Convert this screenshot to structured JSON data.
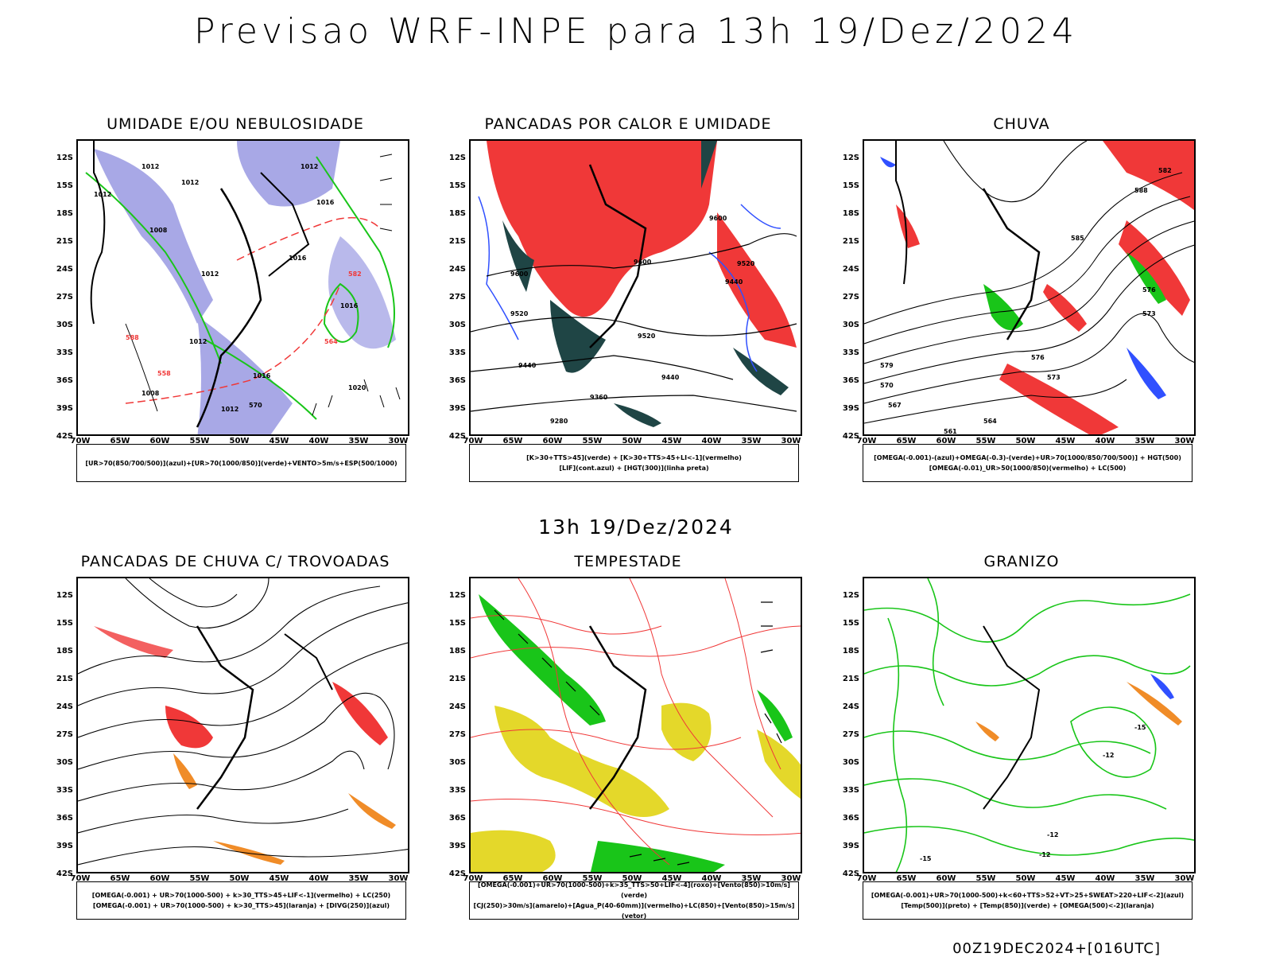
{
  "title": "Previsao WRF-INPE  para 13h 19/Dez/2024",
  "mid_title": "13h 19/Dez/2024",
  "footer": "00Z19DEC2024+[016UTC]",
  "lat_labels": [
    "12S",
    "15S",
    "18S",
    "21S",
    "24S",
    "27S",
    "30S",
    "33S",
    "36S",
    "39S",
    "42S"
  ],
  "lon_labels": [
    "70W",
    "65W",
    "60W",
    "55W",
    "50W",
    "45W",
    "40W",
    "35W",
    "30W"
  ],
  "panels": [
    {
      "title": "UMIDADE E/OU NEBULOSIDADE",
      "legend": [
        "[UR>70(850/700/500)](azul)+[UR>70(1000/850)](verde)+VENTO>5m/s+ESP(500/1000)"
      ]
    },
    {
      "title": "PANCADAS POR CALOR E UMIDADE",
      "legend": [
        "[K>30+TTS>45](verde) + [K>30+TTS>45+LI<-1](vermelho)",
        "[LIF](cont.azul) + [HGT(300)](linha preta)"
      ]
    },
    {
      "title": "CHUVA",
      "legend": [
        "[OMEGA(-0.001)-(azul)+OMEGA(-0.3)-(verde)+UR>70(1000/850/700/500)] + HGT(500)",
        "[OMEGA(-0.01)_UR>50(1000/850)(vermelho) + LC(500)"
      ]
    },
    {
      "title": "PANCADAS DE CHUVA C/ TROVOADAS",
      "legend": [
        "[OMEGA(-0.001) + UR>70(1000-500) + k>30_TTS>45+LIF<-1](vermelho) + LC(250)",
        "[OMEGA(-0.001) + UR>70(1000-500) + k>30_TTS>45](laranja) + [DIVG(250)](azul)"
      ]
    },
    {
      "title": "TEMPESTADE",
      "legend": [
        "[OMEGA(-0.001)+UR>70(1000-500)+k>35_TTS>50+LIF<-4](roxo)+[Vento(850)>10m/s](verde)",
        "[CJ(250)>30m/s](amarelo)+[Agua_P(40-60mm)](vermelho)+LC(850)+[Vento(850)>15m/s](vetor)"
      ]
    },
    {
      "title": "GRANIZO",
      "legend": [
        "[OMEGA(-0.001)+UR>70(1000-500)+k<60+TTS>52+VT>25+SWEAT>220+LIF<-2](azul)",
        "[Temp(500)](preto) + [Temp(850)](verde) + [OMEGA(500)<-2](laranja)"
      ]
    }
  ],
  "map_labels": {
    "p1": [
      "1012",
      "1012",
      "1012",
      "1012",
      "1016",
      "1016",
      "1008",
      "1012",
      "1016",
      "1016",
      "1020",
      "1008",
      "1012",
      "1012",
      "570",
      "588",
      "564",
      "558",
      "582"
    ],
    "p2": [
      "9600",
      "9600",
      "9520",
      "9440",
      "9520",
      "9440",
      "9360",
      "9280",
      "9520",
      "9600",
      "9440"
    ],
    "p3": [
      "582",
      "576",
      "573",
      "570",
      "567",
      "564",
      "561",
      "588",
      "585",
      "576",
      "573",
      "579"
    ],
    "p6": [
      "-12",
      "-12",
      "-15",
      "-12",
      "-15"
    ]
  },
  "colors": {
    "red": "#f03838",
    "green": "#19c519",
    "blue": "#3050ff",
    "lavender": "#a8a8e6",
    "darkteal": "#1f4545",
    "yellow": "#e4d82a",
    "orange": "#f08c28"
  }
}
